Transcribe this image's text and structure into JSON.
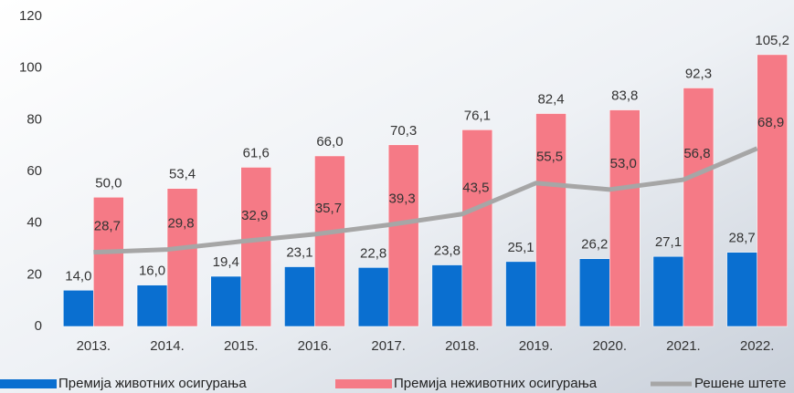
{
  "chart_data": {
    "type": "bar",
    "categories": [
      "2013.",
      "2014.",
      "2015.",
      "2016.",
      "2017.",
      "2018.",
      "2019.",
      "2020.",
      "2021.",
      "2022."
    ],
    "series": [
      {
        "name": "Премија животних осигурања",
        "type": "bar",
        "color": "#0a6fd0",
        "values": [
          14.0,
          16.0,
          19.4,
          23.1,
          22.8,
          23.8,
          25.1,
          26.2,
          27.1,
          28.7
        ],
        "value_labels": [
          "14,0",
          "16,0",
          "19,4",
          "23,1",
          "22,8",
          "23,8",
          "25,1",
          "26,2",
          "27,1",
          "28,7"
        ]
      },
      {
        "name": "Премија неживотних осигурања",
        "type": "bar",
        "color": "#f57a86",
        "values": [
          50.0,
          53.4,
          61.6,
          66.0,
          70.3,
          76.1,
          82.4,
          83.8,
          92.3,
          105.2
        ],
        "value_labels": [
          "50,0",
          "53,4",
          "61,6",
          "66,0",
          "70,3",
          "76,1",
          "82,4",
          "83,8",
          "92,3",
          "105,2"
        ]
      },
      {
        "name": "Решене штете",
        "type": "line",
        "color": "#a6a6a6",
        "values": [
          28.7,
          29.8,
          32.9,
          35.7,
          39.3,
          43.5,
          55.5,
          53.0,
          56.8,
          68.9
        ],
        "value_labels": [
          "28,7",
          "29,8",
          "32,9",
          "35,7",
          "39,3",
          "43,5",
          "55,5",
          "53,0",
          "56,8",
          "68,9"
        ]
      }
    ],
    "ylim": [
      0,
      120
    ],
    "yticks": [
      0,
      20,
      40,
      60,
      80,
      100,
      120
    ],
    "grid": false,
    "legend": "bottom"
  }
}
